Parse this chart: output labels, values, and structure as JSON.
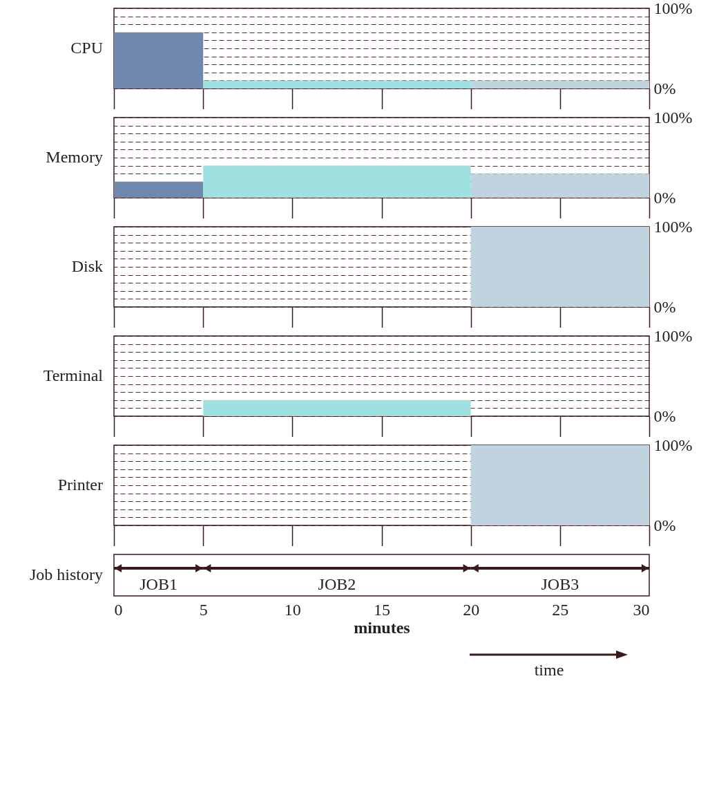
{
  "chart_data": [
    {
      "type": "area",
      "ylabel": "CPU",
      "xlim": [
        0,
        30
      ],
      "xticks": [
        0,
        5,
        10,
        15,
        20,
        25,
        30
      ],
      "ylim": [
        0,
        100
      ],
      "yticks": [
        {
          "value": 0,
          "label": "0%"
        },
        {
          "value": 10,
          "label": null
        },
        {
          "value": 20,
          "label": null
        },
        {
          "value": 30,
          "label": null
        },
        {
          "value": 40,
          "label": null
        },
        {
          "value": 50,
          "label": null
        },
        {
          "value": 60,
          "label": null
        },
        {
          "value": 70,
          "label": null
        },
        {
          "value": 80,
          "label": null
        },
        {
          "value": 90,
          "label": null
        },
        {
          "value": 100,
          "label": "100%"
        }
      ],
      "grid": "y",
      "tick_labels": "y",
      "series": [
        {
          "color": "#6f88ae",
          "x": [
            0,
            5
          ],
          "values": [
            70,
            70
          ]
        },
        {
          "color": "#9fe0e0",
          "x": [
            5,
            20
          ],
          "values": [
            10,
            10
          ]
        },
        {
          "color": "#c0d4e0",
          "x": [
            20,
            30
          ],
          "values": [
            10,
            10
          ]
        }
      ]
    },
    {
      "type": "area",
      "ylabel": "Memory",
      "xlim": [
        0,
        30
      ],
      "xticks": [
        0,
        5,
        10,
        15,
        20,
        25,
        30
      ],
      "ylim": [
        0,
        100
      ],
      "yticks": [
        {
          "value": 0,
          "label": "0%"
        },
        {
          "value": 10,
          "label": null
        },
        {
          "value": 20,
          "label": null
        },
        {
          "value": 30,
          "label": null
        },
        {
          "value": 40,
          "label": null
        },
        {
          "value": 50,
          "label": null
        },
        {
          "value": 60,
          "label": null
        },
        {
          "value": 70,
          "label": null
        },
        {
          "value": 80,
          "label": null
        },
        {
          "value": 90,
          "label": null
        },
        {
          "value": 100,
          "label": "100%"
        }
      ],
      "grid": "y",
      "tick_labels": "y",
      "series": [
        {
          "color": "#6f88ae",
          "x": [
            0,
            5
          ],
          "values": [
            20,
            20
          ]
        },
        {
          "color": "#9fe0e0",
          "x": [
            5,
            20
          ],
          "values": [
            40,
            40
          ]
        },
        {
          "color": "#c0d4e0",
          "x": [
            20,
            30
          ],
          "values": [
            30,
            30
          ]
        }
      ]
    },
    {
      "type": "area",
      "ylabel": "Disk",
      "xlim": [
        0,
        30
      ],
      "xticks": [
        0,
        5,
        10,
        15,
        20,
        25,
        30
      ],
      "ylim": [
        0,
        100
      ],
      "yticks": [
        {
          "value": 0,
          "label": "0%"
        },
        {
          "value": 10,
          "label": null
        },
        {
          "value": 20,
          "label": null
        },
        {
          "value": 30,
          "label": null
        },
        {
          "value": 40,
          "label": null
        },
        {
          "value": 50,
          "label": null
        },
        {
          "value": 60,
          "label": null
        },
        {
          "value": 70,
          "label": null
        },
        {
          "value": 80,
          "label": null
        },
        {
          "value": 90,
          "label": null
        },
        {
          "value": 100,
          "label": "100%"
        }
      ],
      "grid": "y",
      "tick_labels": "y",
      "series": [
        {
          "color": "#c0d4e0",
          "x": [
            20,
            30
          ],
          "values": [
            100,
            100
          ]
        }
      ]
    },
    {
      "type": "area",
      "ylabel": "Terminal",
      "xlim": [
        0,
        30
      ],
      "xticks": [
        0,
        5,
        10,
        15,
        20,
        25,
        30
      ],
      "ylim": [
        0,
        100
      ],
      "yticks": [
        {
          "value": 0,
          "label": "0%"
        },
        {
          "value": 10,
          "label": null
        },
        {
          "value": 20,
          "label": null
        },
        {
          "value": 30,
          "label": null
        },
        {
          "value": 40,
          "label": null
        },
        {
          "value": 50,
          "label": null
        },
        {
          "value": 60,
          "label": null
        },
        {
          "value": 70,
          "label": null
        },
        {
          "value": 80,
          "label": null
        },
        {
          "value": 90,
          "label": null
        },
        {
          "value": 100,
          "label": "100%"
        }
      ],
      "grid": "y",
      "tick_labels": "y",
      "series": [
        {
          "color": "#9fe0e0",
          "x": [
            5,
            20
          ],
          "values": [
            20,
            20
          ]
        }
      ]
    },
    {
      "type": "area",
      "ylabel": "Printer",
      "xlim": [
        0,
        30
      ],
      "xticks": [
        0,
        5,
        10,
        15,
        20,
        25,
        30
      ],
      "ylim": [
        0,
        100
      ],
      "yticks": [
        {
          "value": 0,
          "label": "0%"
        },
        {
          "value": 10,
          "label": null
        },
        {
          "value": 20,
          "label": null
        },
        {
          "value": 30,
          "label": null
        },
        {
          "value": 40,
          "label": null
        },
        {
          "value": 50,
          "label": null
        },
        {
          "value": 60,
          "label": null
        },
        {
          "value": 70,
          "label": null
        },
        {
          "value": 80,
          "label": null
        },
        {
          "value": 90,
          "label": null
        },
        {
          "value": 100,
          "label": "100%"
        }
      ],
      "grid": "y",
      "tick_labels": "y",
      "series": [
        {
          "color": "#c0d4e0",
          "x": [
            20,
            30
          ],
          "values": [
            100,
            100
          ]
        }
      ]
    },
    {
      "type": "bar",
      "orientation": "horizontal",
      "stacked": true,
      "ylabel": "Job history",
      "xlabel": "minutes",
      "categories": [
        null
      ],
      "xlim": [
        0,
        30
      ],
      "xticks": [
        0,
        5,
        10,
        15,
        20,
        25,
        30
      ],
      "tick_labels": "x",
      "annotations": [
        "time"
      ],
      "series": [
        {
          "name": "JOB1",
          "color": "#3a1a1a",
          "values": [
            5
          ]
        },
        {
          "name": "JOB2",
          "color": "#3a1a1a",
          "values": [
            15
          ]
        },
        {
          "name": "JOB3",
          "color": "#3a1a1a",
          "values": [
            10
          ]
        }
      ]
    }
  ]
}
